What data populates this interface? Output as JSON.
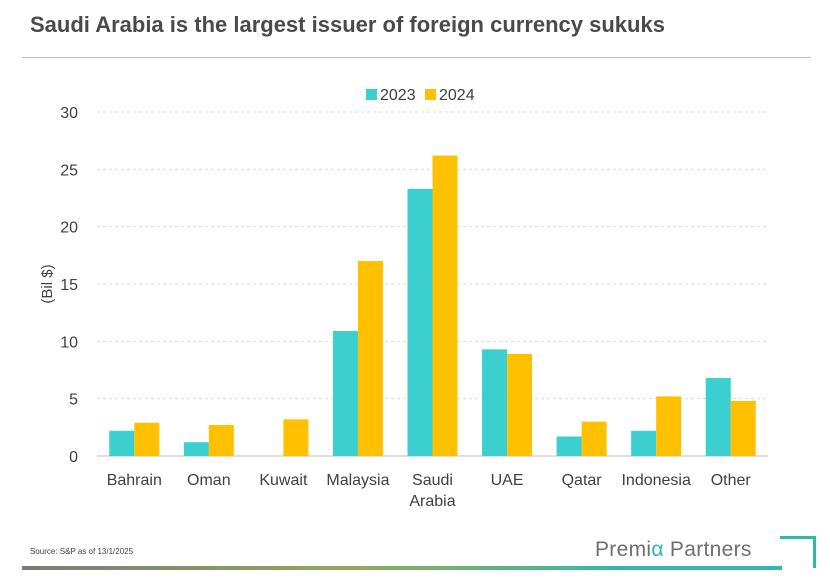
{
  "title": "Saudi Arabia is the largest issuer of foreign currency sukuks",
  "source": "Source: S&P as of 13/1/2025",
  "brand": {
    "prefix": "Premi",
    "alpha": "α",
    "suffix": " Partners"
  },
  "colors": {
    "s2023": "#3ccfcf",
    "s2024": "#ffc000",
    "accent": "#2fb9ab"
  },
  "chart_data": {
    "type": "bar",
    "ylabel": "(Bil $)",
    "ylim": [
      0,
      30
    ],
    "yticks": [
      0,
      5,
      10,
      15,
      20,
      25,
      30
    ],
    "grid": true,
    "legend_position": "top",
    "categories": [
      [
        "Bahrain"
      ],
      [
        "Oman"
      ],
      [
        "Kuwait"
      ],
      [
        "Malaysia"
      ],
      [
        "Saudi",
        "Arabia"
      ],
      [
        "UAE"
      ],
      [
        "Qatar"
      ],
      [
        "Indonesia"
      ],
      [
        "Other"
      ]
    ],
    "series": [
      {
        "name": "2023",
        "color": "#3ccfcf",
        "values": [
          2.2,
          1.2,
          0,
          10.9,
          23.3,
          9.3,
          1.7,
          2.2,
          6.8
        ]
      },
      {
        "name": "2024",
        "color": "#ffc000",
        "values": [
          2.9,
          2.7,
          3.2,
          17.0,
          26.2,
          8.9,
          3.0,
          5.2,
          4.8
        ]
      }
    ]
  }
}
